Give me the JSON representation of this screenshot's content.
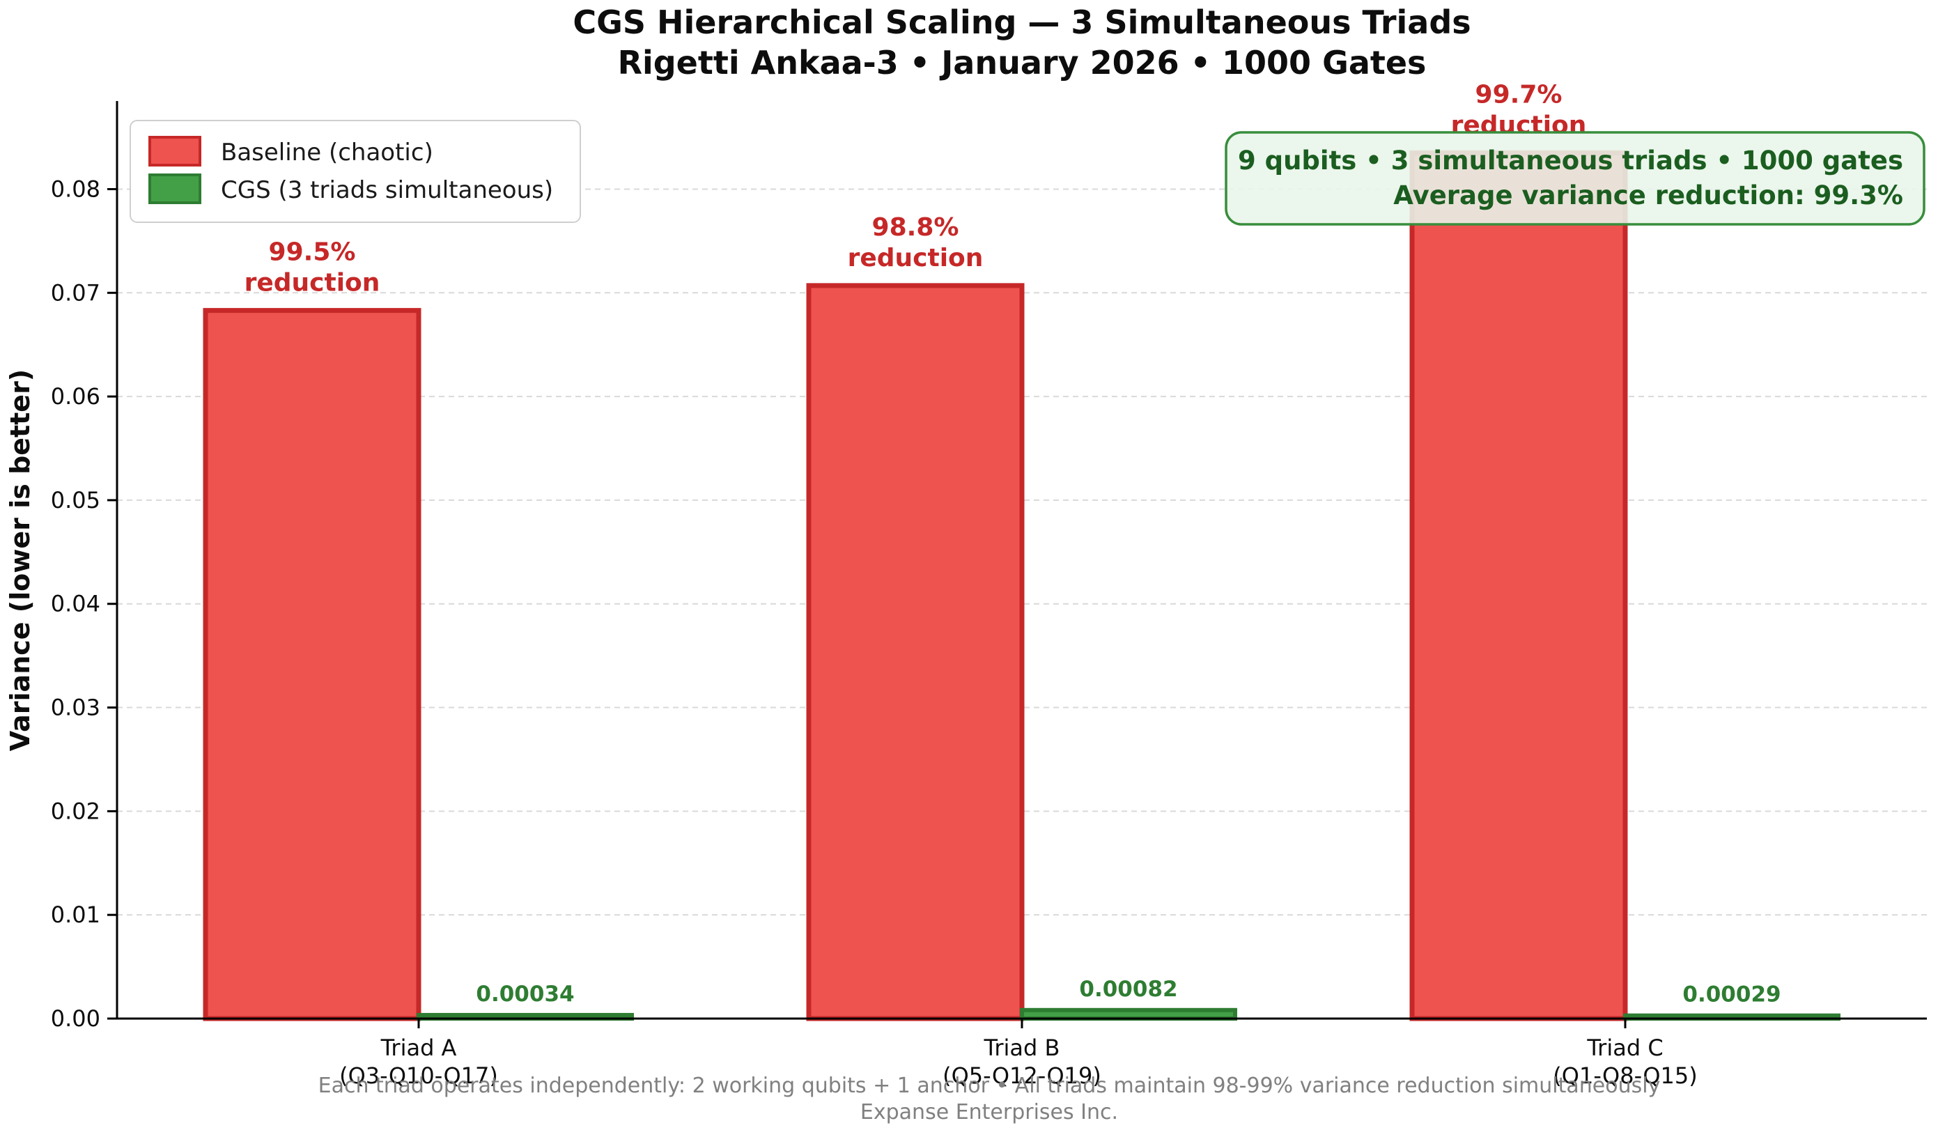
{
  "title": {
    "line1": "CGS Hierarchical Scaling — 3 Simultaneous Triads",
    "line2": "Rigetti Ankaa-3 • January 2026 • 1000 Gates"
  },
  "legend": {
    "position": "upper-left",
    "items": [
      {
        "label": "Baseline (chaotic)",
        "fill": "#ef5350",
        "edge": "#c62828"
      },
      {
        "label": "CGS (3 triads simultaneous)",
        "fill": "#43a047",
        "edge": "#2e7d32"
      }
    ]
  },
  "info_box": {
    "line1": "9 qubits • 3 simultaneous triads • 1000 gates",
    "line2": "Average variance reduction: 99.3%",
    "text_color": "#1b5e20",
    "background": "#e8f5e9",
    "border_color": "#388e3c"
  },
  "footer": {
    "line1": "Each triad operates independently: 2 working qubits + 1 anchor • All triads maintain 98-99% variance reduction simultaneously",
    "line2": "Expanse Enterprises Inc."
  },
  "chart_data": {
    "type": "bar",
    "title": "CGS Hierarchical Scaling — 3 Simultaneous Triads",
    "subtitle": "Rigetti Ankaa-3 • January 2026 • 1000 Gates",
    "categories": [
      {
        "name": "Triad A",
        "qubits": "(Q3-Q10-Q17)"
      },
      {
        "name": "Triad B",
        "qubits": "(Q5-Q12-Q19)"
      },
      {
        "name": "Triad C",
        "qubits": "(Q1-Q8-Q15)"
      }
    ],
    "series": [
      {
        "name": "Baseline (chaotic)",
        "values": [
          0.0683,
          0.0707,
          0.0835
        ],
        "fill": "#ef5350",
        "edge": "#c62828"
      },
      {
        "name": "CGS (3 triads simultaneous)",
        "values": [
          0.00034,
          0.00082,
          0.00029
        ],
        "fill": "#43a047",
        "edge": "#2e7d32"
      }
    ],
    "reduction_labels": [
      {
        "percent": "99.5%",
        "word": "reduction"
      },
      {
        "percent": "98.8%",
        "word": "reduction"
      },
      {
        "percent": "99.7%",
        "word": "reduction"
      }
    ],
    "cgs_value_labels": [
      "0.00034",
      "0.00082",
      "0.00029"
    ],
    "ylabel": "Variance (lower is better)",
    "xlabel": "",
    "yticks": {
      "values": [
        0,
        0.01,
        0.02,
        0.03,
        0.04,
        0.05,
        0.06,
        0.07,
        0.08
      ],
      "labels": [
        "0.00",
        "0.01",
        "0.02",
        "0.03",
        "0.04",
        "0.05",
        "0.06",
        "0.07",
        "0.08"
      ]
    },
    "ylim": [
      0,
      0.0885
    ],
    "grid": "horizontal-dashed",
    "grid_color": "#d9d9d9",
    "legend_position": "upper-left"
  }
}
